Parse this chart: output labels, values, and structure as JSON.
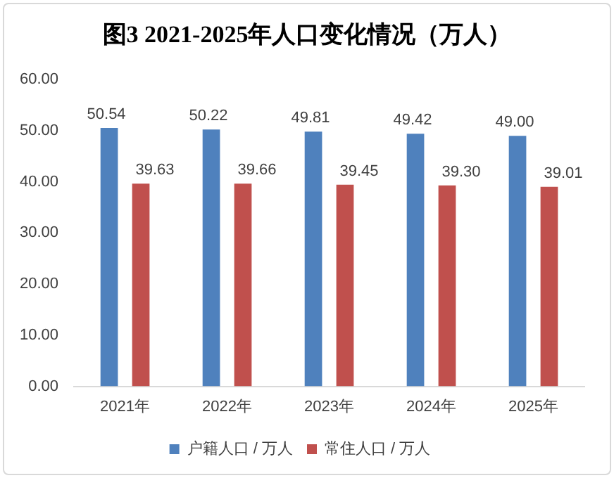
{
  "chart_data": {
    "type": "bar",
    "title": "图3  2021-2025年人口变化情况（万人）",
    "categories": [
      "2021年",
      "2022年",
      "2023年",
      "2024年",
      "2025年"
    ],
    "series": [
      {
        "name": "户籍人口 / 万人",
        "color": "#4f81bd",
        "values": [
          50.54,
          50.22,
          49.81,
          49.42,
          49.0
        ],
        "value_labels": [
          "50.54",
          "50.22",
          "49.81",
          "49.42",
          "49.00"
        ]
      },
      {
        "name": "常住人口 / 万人",
        "color": "#c0504d",
        "values": [
          39.63,
          39.66,
          39.45,
          39.3,
          39.01
        ],
        "value_labels": [
          "39.63",
          "39.66",
          "39.45",
          "39.30",
          "39.01"
        ]
      }
    ],
    "ylim": [
      0,
      60
    ],
    "yticks": [
      {
        "value": 0,
        "label": "0.00"
      },
      {
        "value": 10,
        "label": "10.00"
      },
      {
        "value": 20,
        "label": "20.00"
      },
      {
        "value": 30,
        "label": "30.00"
      },
      {
        "value": 40,
        "label": "40.00"
      },
      {
        "value": 50,
        "label": "50.00"
      },
      {
        "value": 60,
        "label": "60.00"
      }
    ],
    "grid": false,
    "legend": "bottom"
  }
}
